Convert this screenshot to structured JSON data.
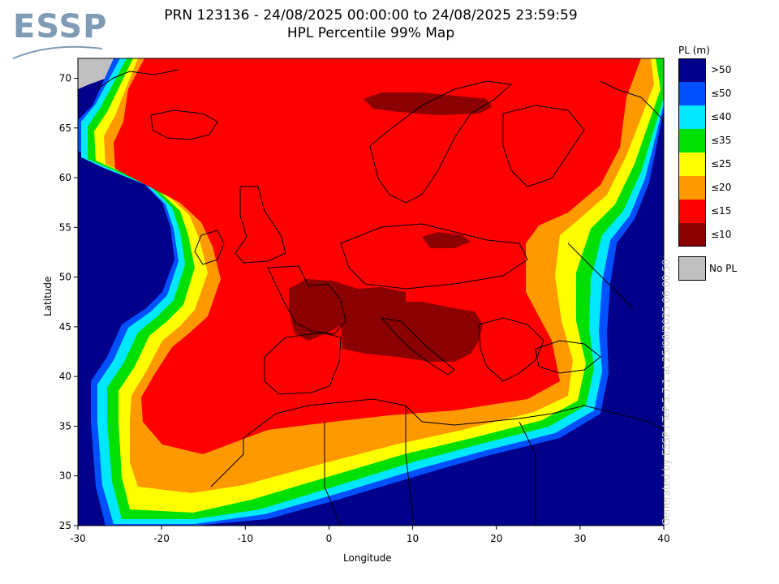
{
  "logo": {
    "text": "ESSP"
  },
  "title": {
    "line1": "PRN 123136 - 24/08/2025 00:00:00 to 24/08/2025 23:59:59",
    "line2": "HPL Percentile 99% Map"
  },
  "axes": {
    "xlabel": "Longitude",
    "ylabel": "Latitude",
    "x_ticks": [
      "-30",
      "-20",
      "-10",
      "0",
      "10",
      "20",
      "30",
      "40"
    ],
    "y_ticks": [
      "70",
      "65",
      "60",
      "55",
      "50",
      "45",
      "40",
      "35",
      "30",
      "25"
    ],
    "xlim": [
      -30,
      40
    ],
    "ylim": [
      25,
      72
    ]
  },
  "credit": "Generated by ESSP / TeP 5.7.1 at 25/08/2025 06:00:50",
  "legend": {
    "title": "PL (m)",
    "items": [
      {
        "label": ">50",
        "color": "#00008b"
      },
      {
        "label": "≤50",
        "color": "#0050ff"
      },
      {
        "label": "≤40",
        "color": "#00e8ff"
      },
      {
        "label": "≤35",
        "color": "#00e000"
      },
      {
        "label": "≤25",
        "color": "#ffff00"
      },
      {
        "label": "≤20",
        "color": "#ff9900"
      },
      {
        "label": "≤15",
        "color": "#ff0000"
      },
      {
        "label": "≤10",
        "color": "#8b0000"
      }
    ],
    "no_pl": {
      "label": "No PL",
      "color": "#c0c0c0"
    }
  }
}
